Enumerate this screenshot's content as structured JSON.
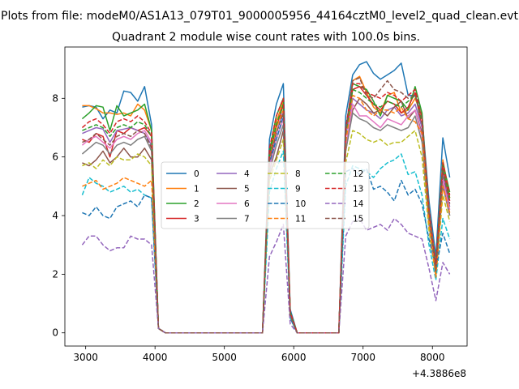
{
  "figure": {
    "suptitle": "Plots from file: modeM0/AS1A13_079T01_9000005956_44164cztM0_level2_quad_clean.evt",
    "title": "Quadrant 2 module wise count rates with 100.0s bins."
  },
  "chart_data": {
    "type": "line",
    "title": "Quadrant 2 module wise count rates with 100.0s bins.",
    "xlabel": "",
    "ylabel": "",
    "x_offset_label": "+4.3886e8",
    "xlim": [
      2700,
      8500
    ],
    "ylim": [
      -0.45,
      9.75
    ],
    "xticks": [
      3000,
      4000,
      5000,
      6000,
      7000,
      8000
    ],
    "yticks": [
      0,
      2,
      4,
      6,
      8
    ],
    "grid": false,
    "legend": {
      "placement": "center",
      "columns": 4
    },
    "x": [
      2950,
      3050,
      3150,
      3250,
      3350,
      3450,
      3550,
      3650,
      3750,
      3850,
      3950,
      4050,
      4150,
      4250,
      4350,
      4450,
      4550,
      4650,
      4750,
      4850,
      4950,
      5050,
      5150,
      5250,
      5350,
      5450,
      5550,
      5650,
      5750,
      5850,
      5950,
      6050,
      6150,
      6250,
      6350,
      6450,
      6550,
      6650,
      6750,
      6850,
      6950,
      7050,
      7150,
      7250,
      7350,
      7450,
      7550,
      7650,
      7750,
      7850,
      7950,
      8050,
      8150,
      8250
    ],
    "series": [
      {
        "name": "0",
        "color": "#1f77b4",
        "dash": "solid",
        "values": [
          7.7,
          7.75,
          7.7,
          7.3,
          7.6,
          7.5,
          8.25,
          8.2,
          7.9,
          8.4,
          7.1,
          0.15,
          0,
          0,
          0,
          0,
          0,
          0,
          0,
          0,
          0,
          0,
          0,
          0,
          0,
          0,
          0,
          6.6,
          7.8,
          8.5,
          0.8,
          0,
          0,
          0,
          0,
          0,
          0,
          0,
          7.4,
          8.8,
          9.15,
          9.25,
          8.85,
          8.65,
          8.8,
          8.95,
          9.2,
          8.1,
          8.1,
          7.4,
          4.5,
          2.6,
          6.65,
          5.3
        ]
      },
      {
        "name": "1",
        "color": "#ff7f0e",
        "dash": "solid",
        "values": [
          7.75,
          7.75,
          7.65,
          7.5,
          7.5,
          7.45,
          7.5,
          7.4,
          7.8,
          7.6,
          6.9,
          0.15,
          0,
          0,
          0,
          0,
          0,
          0,
          0,
          0,
          0,
          0,
          0,
          0,
          0,
          0,
          0,
          6.0,
          7.2,
          7.9,
          0.7,
          0,
          0,
          0,
          0,
          0,
          0,
          0,
          6.8,
          8.6,
          8.75,
          8.2,
          7.7,
          7.5,
          8.1,
          8.2,
          7.5,
          7.6,
          8.0,
          7.4,
          4.2,
          2.3,
          5.9,
          4.6
        ]
      },
      {
        "name": "2",
        "color": "#2ca02c",
        "dash": "solid",
        "values": [
          7.3,
          7.5,
          7.75,
          7.7,
          6.9,
          7.75,
          7.4,
          7.5,
          7.6,
          7.8,
          6.9,
          0.15,
          0,
          0,
          0,
          0,
          0,
          0,
          0,
          0,
          0,
          0,
          0,
          0,
          0,
          0,
          0,
          6.2,
          7.4,
          8.0,
          0.7,
          0,
          0,
          0,
          0,
          0,
          0,
          0,
          6.9,
          8.5,
          8.4,
          8.3,
          7.9,
          7.4,
          8.1,
          8.0,
          7.9,
          7.6,
          8.4,
          7.5,
          4.0,
          2.3,
          5.8,
          4.8
        ]
      },
      {
        "name": "3",
        "color": "#d62728",
        "dash": "solid",
        "values": [
          6.6,
          6.5,
          6.8,
          6.7,
          6.0,
          6.9,
          6.8,
          7.0,
          6.9,
          7.0,
          6.7,
          0.15,
          0,
          0,
          0,
          0,
          0,
          0,
          0,
          0,
          0,
          0,
          0,
          0,
          0,
          0,
          0,
          6.0,
          7.0,
          7.8,
          0.7,
          0,
          0,
          0,
          0,
          0,
          0,
          0,
          6.7,
          8.3,
          8.4,
          8.1,
          7.8,
          7.6,
          7.9,
          7.8,
          7.5,
          7.7,
          8.2,
          7.0,
          4.0,
          2.2,
          5.6,
          4.5
        ]
      },
      {
        "name": "4",
        "color": "#9467bd",
        "dash": "solid",
        "values": [
          6.8,
          6.9,
          7.0,
          6.95,
          6.5,
          6.9,
          6.95,
          7.0,
          6.9,
          6.8,
          6.4,
          0.15,
          0,
          0,
          0,
          0,
          0,
          0,
          0,
          0,
          0,
          0,
          0,
          0,
          0,
          0,
          0,
          5.8,
          6.8,
          7.6,
          0.6,
          0,
          0,
          0,
          0,
          0,
          0,
          0,
          6.7,
          8.0,
          7.8,
          7.6,
          7.5,
          7.3,
          7.6,
          7.7,
          7.4,
          7.5,
          7.8,
          7.0,
          3.9,
          2.1,
          5.4,
          4.3
        ]
      },
      {
        "name": "5",
        "color": "#8c564b",
        "dash": "solid",
        "values": [
          5.8,
          5.7,
          5.9,
          6.2,
          5.8,
          6.0,
          6.3,
          6.0,
          6.0,
          6.3,
          5.9,
          0.15,
          0,
          0,
          0,
          0,
          0,
          0,
          0,
          0,
          0,
          0,
          0,
          0,
          0,
          0,
          0,
          5.4,
          6.0,
          6.9,
          0.6,
          0,
          0,
          0,
          0,
          0,
          0,
          0,
          6.2,
          7.6,
          8.0,
          7.8,
          7.5,
          7.6,
          7.4,
          7.7,
          7.9,
          7.3,
          7.6,
          6.8,
          3.7,
          2.0,
          5.1,
          4.0
        ]
      },
      {
        "name": "6",
        "color": "#e377c2",
        "dash": "solid",
        "values": [
          6.4,
          6.6,
          6.7,
          6.5,
          6.3,
          6.6,
          6.7,
          6.6,
          6.8,
          6.9,
          6.5,
          0.15,
          0,
          0,
          0,
          0,
          0,
          0,
          0,
          0,
          0,
          0,
          0,
          0,
          0,
          0,
          0,
          5.6,
          6.6,
          7.3,
          0.6,
          0,
          0,
          0,
          0,
          0,
          0,
          0,
          6.3,
          7.8,
          7.4,
          7.4,
          7.2,
          7.0,
          7.3,
          7.2,
          7.1,
          7.4,
          7.6,
          6.7,
          3.8,
          2.0,
          5.2,
          4.2
        ]
      },
      {
        "name": "7",
        "color": "#7f7f7f",
        "dash": "solid",
        "values": [
          6.1,
          6.3,
          6.5,
          6.4,
          6.1,
          6.4,
          6.5,
          6.4,
          6.6,
          6.7,
          6.2,
          0.15,
          0,
          0,
          0,
          0,
          0,
          0,
          0,
          0,
          0,
          0,
          0,
          0,
          0,
          0,
          0,
          5.5,
          6.4,
          7.1,
          0.6,
          0,
          0,
          0,
          0,
          0,
          0,
          0,
          6.2,
          7.5,
          7.3,
          7.2,
          7.0,
          6.9,
          7.1,
          7.0,
          6.9,
          7.0,
          7.4,
          6.5,
          3.7,
          2.0,
          5.0,
          4.0
        ]
      },
      {
        "name": "8",
        "color": "#bcbd22",
        "dash": "dashed",
        "values": [
          5.7,
          5.8,
          5.6,
          5.9,
          5.7,
          6.0,
          5.9,
          5.9,
          6.1,
          6.0,
          5.7,
          0.15,
          0,
          0,
          0,
          0,
          0,
          0,
          0,
          0,
          0,
          0,
          0,
          0,
          0,
          0,
          0,
          5.2,
          5.9,
          6.6,
          0.5,
          0,
          0,
          0,
          0,
          0,
          0,
          0,
          5.8,
          6.9,
          6.8,
          6.6,
          6.5,
          6.6,
          6.4,
          6.5,
          6.5,
          6.7,
          6.9,
          6.0,
          3.5,
          1.9,
          4.7,
          3.8
        ]
      },
      {
        "name": "9",
        "color": "#17becf",
        "dash": "dashed",
        "values": [
          4.7,
          5.3,
          5.1,
          5.0,
          4.8,
          4.9,
          5.0,
          4.8,
          4.9,
          4.7,
          4.6,
          0.15,
          0,
          0,
          0,
          0,
          0,
          0,
          0,
          0,
          0,
          0,
          0,
          0,
          0,
          0,
          0,
          4.8,
          5.6,
          6.2,
          0.5,
          0,
          0,
          0,
          0,
          0,
          0,
          0,
          5.0,
          5.7,
          5.6,
          5.5,
          5.3,
          5.6,
          5.8,
          5.9,
          6.1,
          5.4,
          5.5,
          4.7,
          3.0,
          1.8,
          3.9,
          3.2
        ]
      },
      {
        "name": "10",
        "color": "#1f77b4",
        "dash": "dashed",
        "values": [
          4.1,
          4.0,
          4.3,
          4.0,
          3.9,
          4.3,
          4.4,
          4.5,
          4.3,
          4.7,
          4.6,
          0.15,
          0,
          0,
          0,
          0,
          0,
          0,
          0,
          0,
          0,
          0,
          0,
          0,
          0,
          0,
          0,
          5.8,
          6.6,
          7.4,
          0.5,
          0,
          0,
          0,
          0,
          0,
          0,
          0,
          5.5,
          5.6,
          5.4,
          5.6,
          4.9,
          5.0,
          4.8,
          4.5,
          5.2,
          4.7,
          4.9,
          4.4,
          3.2,
          2.2,
          3.4,
          2.7
        ]
      },
      {
        "name": "11",
        "color": "#ff7f0e",
        "dash": "dashed",
        "values": [
          5.0,
          5.1,
          5.2,
          4.9,
          5.0,
          5.1,
          5.3,
          5.2,
          5.1,
          5.0,
          5.2,
          0.15,
          0,
          0,
          0,
          0,
          0,
          0,
          0,
          0,
          0,
          0,
          0,
          0,
          0,
          0,
          0,
          5.9,
          7.0,
          7.6,
          0.6,
          0,
          0,
          0,
          0,
          0,
          0,
          0,
          6.5,
          8.1,
          8.0,
          7.6,
          7.4,
          7.6,
          7.6,
          7.5,
          7.7,
          7.3,
          7.2,
          6.8,
          3.8,
          1.9,
          5.0,
          4.1
        ]
      },
      {
        "name": "12",
        "color": "#2ca02c",
        "dash": "dashed",
        "values": [
          6.9,
          7.0,
          7.1,
          7.0,
          6.7,
          7.0,
          7.1,
          7.0,
          7.2,
          7.1,
          6.7,
          0.15,
          0,
          0,
          0,
          0,
          0,
          0,
          0,
          0,
          0,
          0,
          0,
          0,
          0,
          0,
          0,
          6.1,
          7.1,
          7.8,
          0.7,
          0,
          0,
          0,
          0,
          0,
          0,
          0,
          6.8,
          8.3,
          8.2,
          8.0,
          7.8,
          7.7,
          7.9,
          7.8,
          7.7,
          7.9,
          8.1,
          7.2,
          4.1,
          2.2,
          5.6,
          4.6
        ]
      },
      {
        "name": "13",
        "color": "#d62728",
        "dash": "dashed",
        "values": [
          7.0,
          7.2,
          7.3,
          7.1,
          6.8,
          7.2,
          7.3,
          7.2,
          7.4,
          7.2,
          6.8,
          0.15,
          0,
          0,
          0,
          0,
          0,
          0,
          0,
          0,
          0,
          0,
          0,
          0,
          0,
          0,
          0,
          6.3,
          7.4,
          8.0,
          0.7,
          0,
          0,
          0,
          0,
          0,
          0,
          0,
          7.0,
          8.5,
          8.5,
          8.2,
          8.1,
          8.0,
          8.2,
          8.1,
          7.9,
          8.1,
          8.3,
          7.3,
          4.2,
          2.3,
          5.8,
          4.7
        ]
      },
      {
        "name": "14",
        "color": "#9467bd",
        "dash": "dashed",
        "values": [
          3.0,
          3.3,
          3.3,
          3.0,
          2.8,
          2.9,
          2.9,
          3.3,
          3.2,
          3.2,
          3.0,
          0.15,
          0,
          0,
          0,
          0,
          0,
          0,
          0,
          0,
          0,
          0,
          0,
          0,
          0,
          0,
          0,
          2.6,
          3.1,
          3.7,
          0.3,
          0,
          0,
          0,
          0,
          0,
          0,
          0,
          3.3,
          3.8,
          3.9,
          3.5,
          3.6,
          3.7,
          3.5,
          3.9,
          3.7,
          3.4,
          3.3,
          3.2,
          2.2,
          1.1,
          2.4,
          2.0
        ]
      },
      {
        "name": "15",
        "color": "#8c564b",
        "dash": "dashed",
        "values": [
          6.5,
          6.6,
          6.8,
          6.6,
          6.4,
          6.7,
          6.8,
          6.7,
          6.9,
          6.8,
          6.3,
          0.15,
          0,
          0,
          0,
          0,
          0,
          0,
          0,
          0,
          0,
          0,
          0,
          0,
          0,
          0,
          0,
          5.9,
          6.8,
          7.5,
          0.6,
          0,
          0,
          0,
          0,
          0,
          0,
          0,
          6.9,
          8.6,
          8.7,
          8.1,
          8.0,
          8.3,
          8.6,
          8.3,
          8.2,
          8.0,
          8.1,
          7.3,
          4.1,
          2.1,
          5.5,
          4.4
        ]
      }
    ]
  }
}
